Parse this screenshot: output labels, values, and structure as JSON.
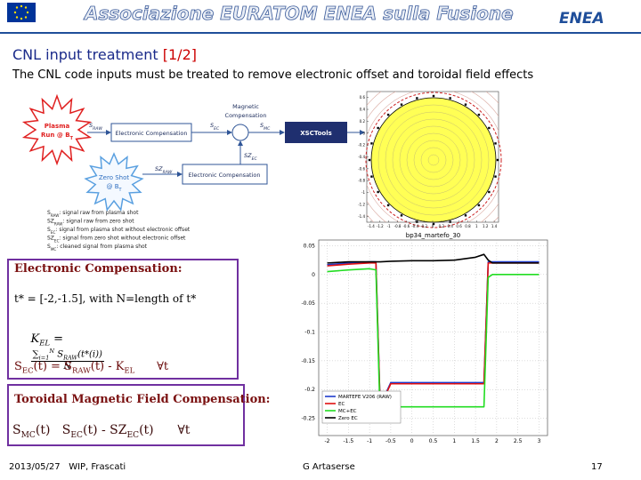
{
  "header": {
    "banner": "Associazione EURATOM ENEA sulla Fusione",
    "logo": "ENEA"
  },
  "title": {
    "main": "CNL input treatment",
    "part": "[1/2]"
  },
  "subtitle": "The CNL code inputs must be treated to remove electronic offset and toroidal field effects",
  "diagram": {
    "plasma": [
      [
        "Plasma"
      ],
      [
        "Run @ B",
        {
          "sub": "T"
        }
      ]
    ],
    "zero_shot": [
      [
        "Zero Shot"
      ],
      [
        "@ B",
        {
          "sub": "T"
        }
      ]
    ],
    "ec_box": "Electronic Compensation",
    "mc_label": [
      [
        "Magnetic"
      ],
      [
        "Compensation"
      ]
    ],
    "xsc_box": "XSCTools",
    "ec_box_zero": "Electronic Compensation",
    "s_raw": [
      "S",
      {
        "sub": "RAW"
      }
    ],
    "s_ec": [
      "S",
      {
        "sub": "EC"
      }
    ],
    "s_mc": [
      "S",
      {
        "sub": "MC"
      }
    ],
    "sz_ec": [
      "SZ",
      {
        "sub": "EC"
      }
    ],
    "sz_raw": [
      "SZ",
      {
        "sub": "RAW"
      }
    ],
    "legend": [
      [
        "S",
        {
          "sub": "RAW"
        },
        ": signal raw from plasma shot"
      ],
      [
        "SZ",
        {
          "sub": "RAW"
        },
        ": signal raw from zero shot"
      ],
      [
        "S",
        {
          "sub": "EC"
        },
        ": signal from plasma shot without electronic offset"
      ],
      [
        "SZ",
        {
          "sub": "EC"
        },
        ": signal from zero shot without electronic offset"
      ],
      [
        "S",
        {
          "sub": "MC"
        },
        ": cleaned signal from plasma shot"
      ]
    ]
  },
  "formulas": {
    "ec": {
      "title": "Electronic Compensation:",
      "window": "t* = [-2,-1.5], with N=length of t*",
      "k_lhs": [
        "K",
        {
          "sub": "EL"
        },
        " ="
      ],
      "k_num": [
        "∑",
        {
          "sub": "i=1"
        },
        {
          "sup": "N"
        },
        " S",
        {
          "sub": "RAW"
        },
        "(t*(i))"
      ],
      "k_den": "N",
      "s_ec": [
        "S",
        {
          "sub": "EC"
        },
        "(t) = S",
        {
          "sub": "RAW"
        },
        "(t) - K",
        {
          "sub": "EL"
        }
      ],
      "forall": "∀t"
    },
    "mc": {
      "title": "Toroidal Magnetic Field Compensation:",
      "eq": [
        "S",
        {
          "sub": "MC"
        },
        "(t)   S",
        {
          "sub": "EC"
        },
        "(t) - SZ",
        {
          "sub": "EC"
        },
        "(t)"
      ],
      "forall": "∀t"
    }
  },
  "equilibrium_plot": {
    "xlim": [
      -1.5,
      1.5
    ],
    "ylim": [
      -1.5,
      0.7
    ],
    "xticks": [
      -1.4,
      -1.2,
      -1,
      -0.8,
      -0.6,
      -0.4,
      -0.2,
      0,
      0.2,
      0.4,
      0.6,
      0.8,
      1,
      1.2,
      1.4
    ],
    "yticks": [
      0.6,
      0.4,
      0.2,
      0,
      -0.2,
      -0.4,
      -0.6,
      -0.8,
      -1,
      -1.2,
      -1.4
    ]
  },
  "chart_data": {
    "type": "line",
    "title": "bp34_martefo_30",
    "x": [
      -2,
      -1.5,
      -1,
      -0.85,
      -0.75,
      -0.5,
      0,
      0.5,
      1,
      1.5,
      1.7,
      1.8,
      1.9,
      2.5,
      3
    ],
    "series": [
      {
        "name": "MARTEFE V206 (RAW)",
        "color": "#1f3ccc",
        "values": [
          0.017,
          0.02,
          0.022,
          0.022,
          -0.228,
          -0.188,
          -0.188,
          -0.188,
          -0.188,
          -0.188,
          -0.188,
          0.022,
          0.022,
          0.022,
          0.022
        ]
      },
      {
        "name": "EC",
        "color": "#e01010",
        "values": [
          0.015,
          0.018,
          0.02,
          0.02,
          -0.23,
          -0.19,
          -0.19,
          -0.19,
          -0.19,
          -0.19,
          -0.19,
          0.02,
          0.02,
          0.02,
          0.02
        ]
      },
      {
        "name": "MC+EC",
        "color": "#22dd22",
        "values": [
          0.005,
          0.008,
          0.01,
          0.008,
          -0.25,
          -0.23,
          -0.23,
          -0.23,
          -0.23,
          -0.23,
          -0.23,
          -0.005,
          0,
          0,
          0
        ]
      },
      {
        "name": "Zero EC",
        "color": "#000000",
        "values": [
          0.02,
          0.022,
          0.022,
          0.022,
          0.022,
          0.023,
          0.024,
          0.024,
          0.025,
          0.03,
          0.035,
          0.025,
          0.02,
          0.02,
          0.02
        ]
      }
    ],
    "xlim": [
      -2.2,
      3.2
    ],
    "ylim": [
      -0.28,
      0.06
    ],
    "xticks": [
      -2,
      -1.5,
      -1,
      -0.5,
      0,
      0.5,
      1,
      1.5,
      2,
      2.5,
      3
    ],
    "yticks": [
      0.05,
      0,
      -0.05,
      -0.1,
      -0.15,
      -0.2,
      -0.25
    ],
    "grid": true,
    "legend": "lower-left"
  },
  "footer": {
    "date": "2013/05/27",
    "place": "WIP, Frascati",
    "author": "G Artaserse",
    "page": "17"
  }
}
